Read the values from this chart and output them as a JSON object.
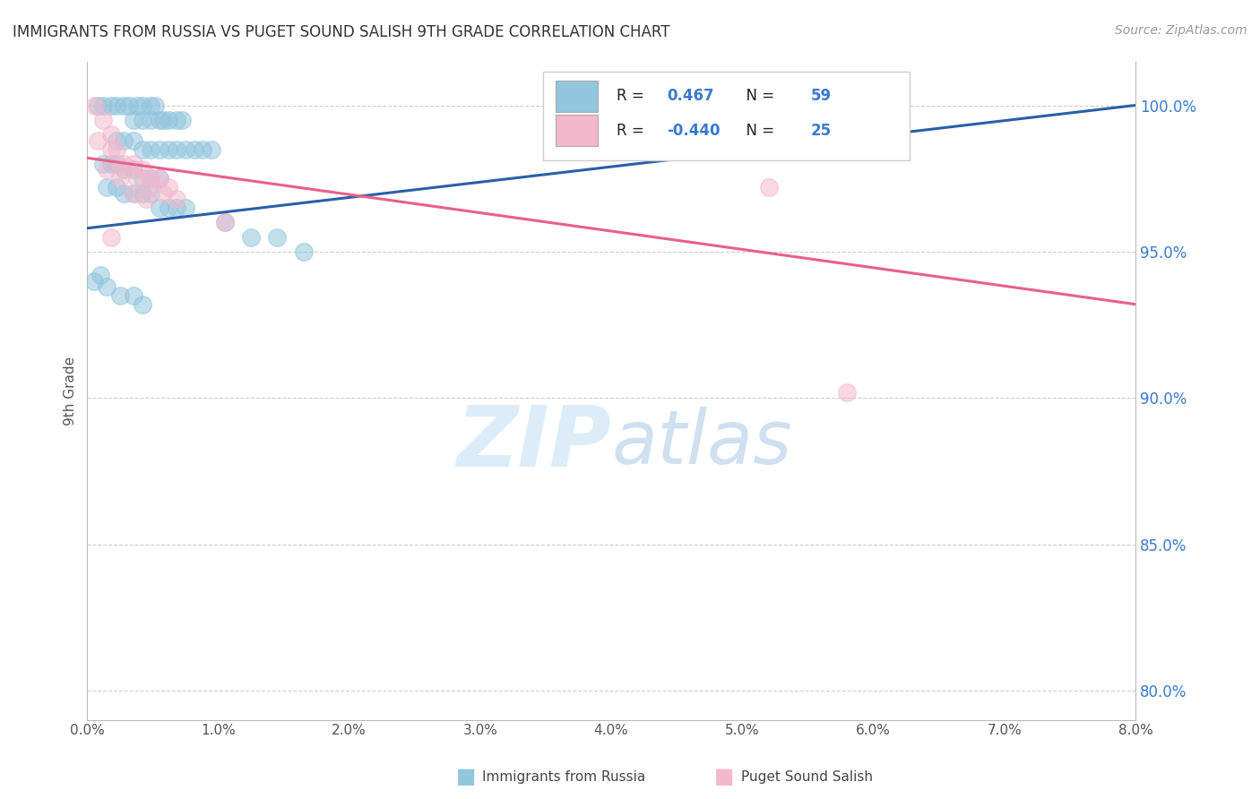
{
  "title": "IMMIGRANTS FROM RUSSIA VS PUGET SOUND SALISH 9TH GRADE CORRELATION CHART",
  "source": "Source: ZipAtlas.com",
  "ylabel": "9th Grade",
  "xlim": [
    0.0,
    8.0
  ],
  "ylim": [
    79.0,
    101.5
  ],
  "yticks": [
    80.0,
    85.0,
    90.0,
    95.0,
    100.0
  ],
  "xticks": [
    0.0,
    1.0,
    2.0,
    3.0,
    4.0,
    5.0,
    6.0,
    7.0,
    8.0
  ],
  "legend_blue_label": "Immigrants from Russia",
  "legend_pink_label": "Puget Sound Salish",
  "R_blue": 0.467,
  "N_blue": 59,
  "R_pink": -0.44,
  "N_pink": 25,
  "blue_dot_color": "#92c5de",
  "pink_dot_color": "#f4b8cc",
  "blue_line_color": "#2b5fa8",
  "pink_line_color": "#e8608a",
  "watermark_zip_color": "#d0e4f5",
  "watermark_atlas_color": "#c5d8ee",
  "background_color": "#ffffff",
  "grid_color": "#cccccc",
  "blue_scatter_x": [
    0.08,
    0.12,
    0.18,
    0.22,
    0.28,
    0.32,
    0.38,
    0.42,
    0.48,
    0.52,
    0.58,
    0.62,
    0.68,
    0.72,
    0.35,
    0.42,
    0.48,
    0.55,
    0.22,
    0.28,
    0.35,
    0.42,
    0.48,
    0.55,
    0.62,
    0.68,
    0.75,
    0.82,
    0.88,
    0.95,
    0.12,
    0.18,
    0.22,
    0.28,
    0.35,
    0.42,
    0.48,
    0.55,
    0.15,
    0.22,
    0.28,
    0.35,
    0.42,
    0.48,
    0.55,
    0.62,
    0.68,
    0.75,
    0.05,
    0.1,
    0.15,
    0.25,
    0.35,
    0.42,
    1.05,
    1.25,
    1.45,
    1.65,
    5.5
  ],
  "blue_scatter_y": [
    100.0,
    100.0,
    100.0,
    100.0,
    100.0,
    100.0,
    100.0,
    100.0,
    100.0,
    100.0,
    99.5,
    99.5,
    99.5,
    99.5,
    99.5,
    99.5,
    99.5,
    99.5,
    98.8,
    98.8,
    98.8,
    98.5,
    98.5,
    98.5,
    98.5,
    98.5,
    98.5,
    98.5,
    98.5,
    98.5,
    98.0,
    98.0,
    98.0,
    97.8,
    97.8,
    97.5,
    97.5,
    97.5,
    97.2,
    97.2,
    97.0,
    97.0,
    97.0,
    97.0,
    96.5,
    96.5,
    96.5,
    96.5,
    94.0,
    94.2,
    93.8,
    93.5,
    93.5,
    93.2,
    96.0,
    95.5,
    95.5,
    95.0,
    100.0
  ],
  "pink_scatter_x": [
    0.06,
    0.12,
    0.18,
    0.22,
    0.28,
    0.35,
    0.42,
    0.48,
    0.55,
    0.62,
    0.08,
    0.18,
    0.28,
    0.38,
    0.48,
    0.58,
    0.68,
    0.15,
    0.25,
    0.35,
    0.45,
    1.05,
    5.2,
    5.8,
    0.18
  ],
  "pink_scatter_y": [
    100.0,
    99.5,
    99.0,
    98.5,
    98.0,
    98.0,
    97.8,
    97.5,
    97.5,
    97.2,
    98.8,
    98.5,
    97.8,
    97.5,
    97.2,
    97.0,
    96.8,
    97.8,
    97.5,
    97.0,
    96.8,
    96.0,
    97.2,
    90.2,
    95.5
  ]
}
